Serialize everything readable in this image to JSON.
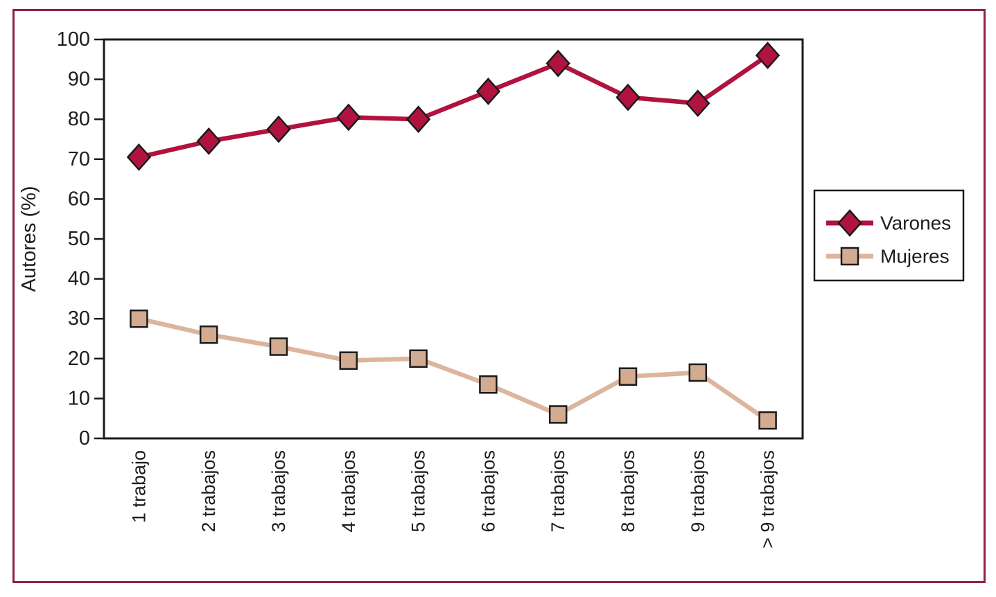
{
  "figure": {
    "background": "#ffffff",
    "border_color": "#8e2340"
  },
  "chart_data": {
    "type": "line",
    "title": "",
    "xlabel": "",
    "ylabel": "Autores (%)",
    "ylim": [
      0,
      100
    ],
    "yticks": [
      0,
      10,
      20,
      30,
      40,
      50,
      60,
      70,
      80,
      90,
      100
    ],
    "grid": false,
    "legend_position": "right",
    "axis_color": "#1a1a1a",
    "text_color": "#1d1d1b",
    "categories": [
      "1 trabajo",
      "2 trabajos",
      "3 trabajos",
      "4 trabajos",
      "5 trabajos",
      "6 trabajos",
      "7 trabajos",
      "8 trabajos",
      "9 trabajos",
      "> 9 trabajos"
    ],
    "series": [
      {
        "name": "Varones",
        "marker": "diamond",
        "line_color": "#b11340",
        "marker_fill": "#b11340",
        "marker_outline": "#1a1a1a",
        "values": [
          70.5,
          74.5,
          77.5,
          80.5,
          80,
          87,
          94,
          85.5,
          84,
          96
        ]
      },
      {
        "name": "Mujeres",
        "marker": "square",
        "line_color": "#dcb59d",
        "marker_fill": "#d3ab91",
        "marker_outline": "#1a1a1a",
        "values": [
          30,
          26,
          23,
          19.5,
          20,
          13.5,
          6,
          15.5,
          16.5,
          4.5
        ]
      }
    ]
  }
}
